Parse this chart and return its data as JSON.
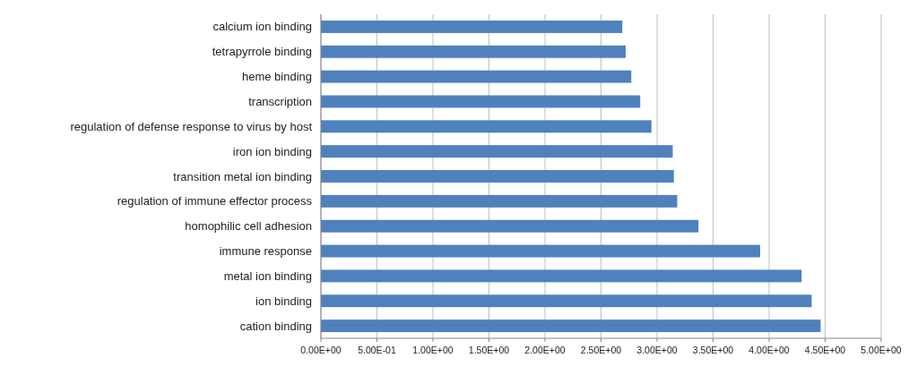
{
  "chart_data": {
    "type": "bar",
    "orientation": "horizontal",
    "categories": [
      "calcium ion binding",
      "tetrapyrrole binding",
      "heme binding",
      "transcription",
      "regulation of defense response to virus by host",
      "iron ion binding",
      "transition metal ion binding",
      "regulation of immune effector process",
      "homophilic cell adhesion",
      "immune response",
      "metal ion binding",
      "ion binding",
      "cation binding"
    ],
    "values": [
      2.69,
      2.72,
      2.77,
      2.85,
      2.95,
      3.14,
      3.15,
      3.18,
      3.37,
      3.92,
      4.29,
      4.38,
      4.46
    ],
    "color": "#4f81bd",
    "xlim": [
      0,
      5
    ],
    "xticks": [
      {
        "value": 0,
        "label": "0.00E+00"
      },
      {
        "value": 0.5,
        "label": "5.00E-01"
      },
      {
        "value": 1,
        "label": "1.00E+00"
      },
      {
        "value": 1.5,
        "label": "1.50E+00"
      },
      {
        "value": 2,
        "label": "2.00E+00"
      },
      {
        "value": 2.5,
        "label": "2.50E+00"
      },
      {
        "value": 3,
        "label": "3.00E+00"
      },
      {
        "value": 3.5,
        "label": "3.50E+00"
      },
      {
        "value": 4,
        "label": "4.00E+00"
      },
      {
        "value": 4.5,
        "label": "4.50E+00"
      },
      {
        "value": 5,
        "label": "5.00E+00"
      }
    ],
    "grid": "x"
  }
}
